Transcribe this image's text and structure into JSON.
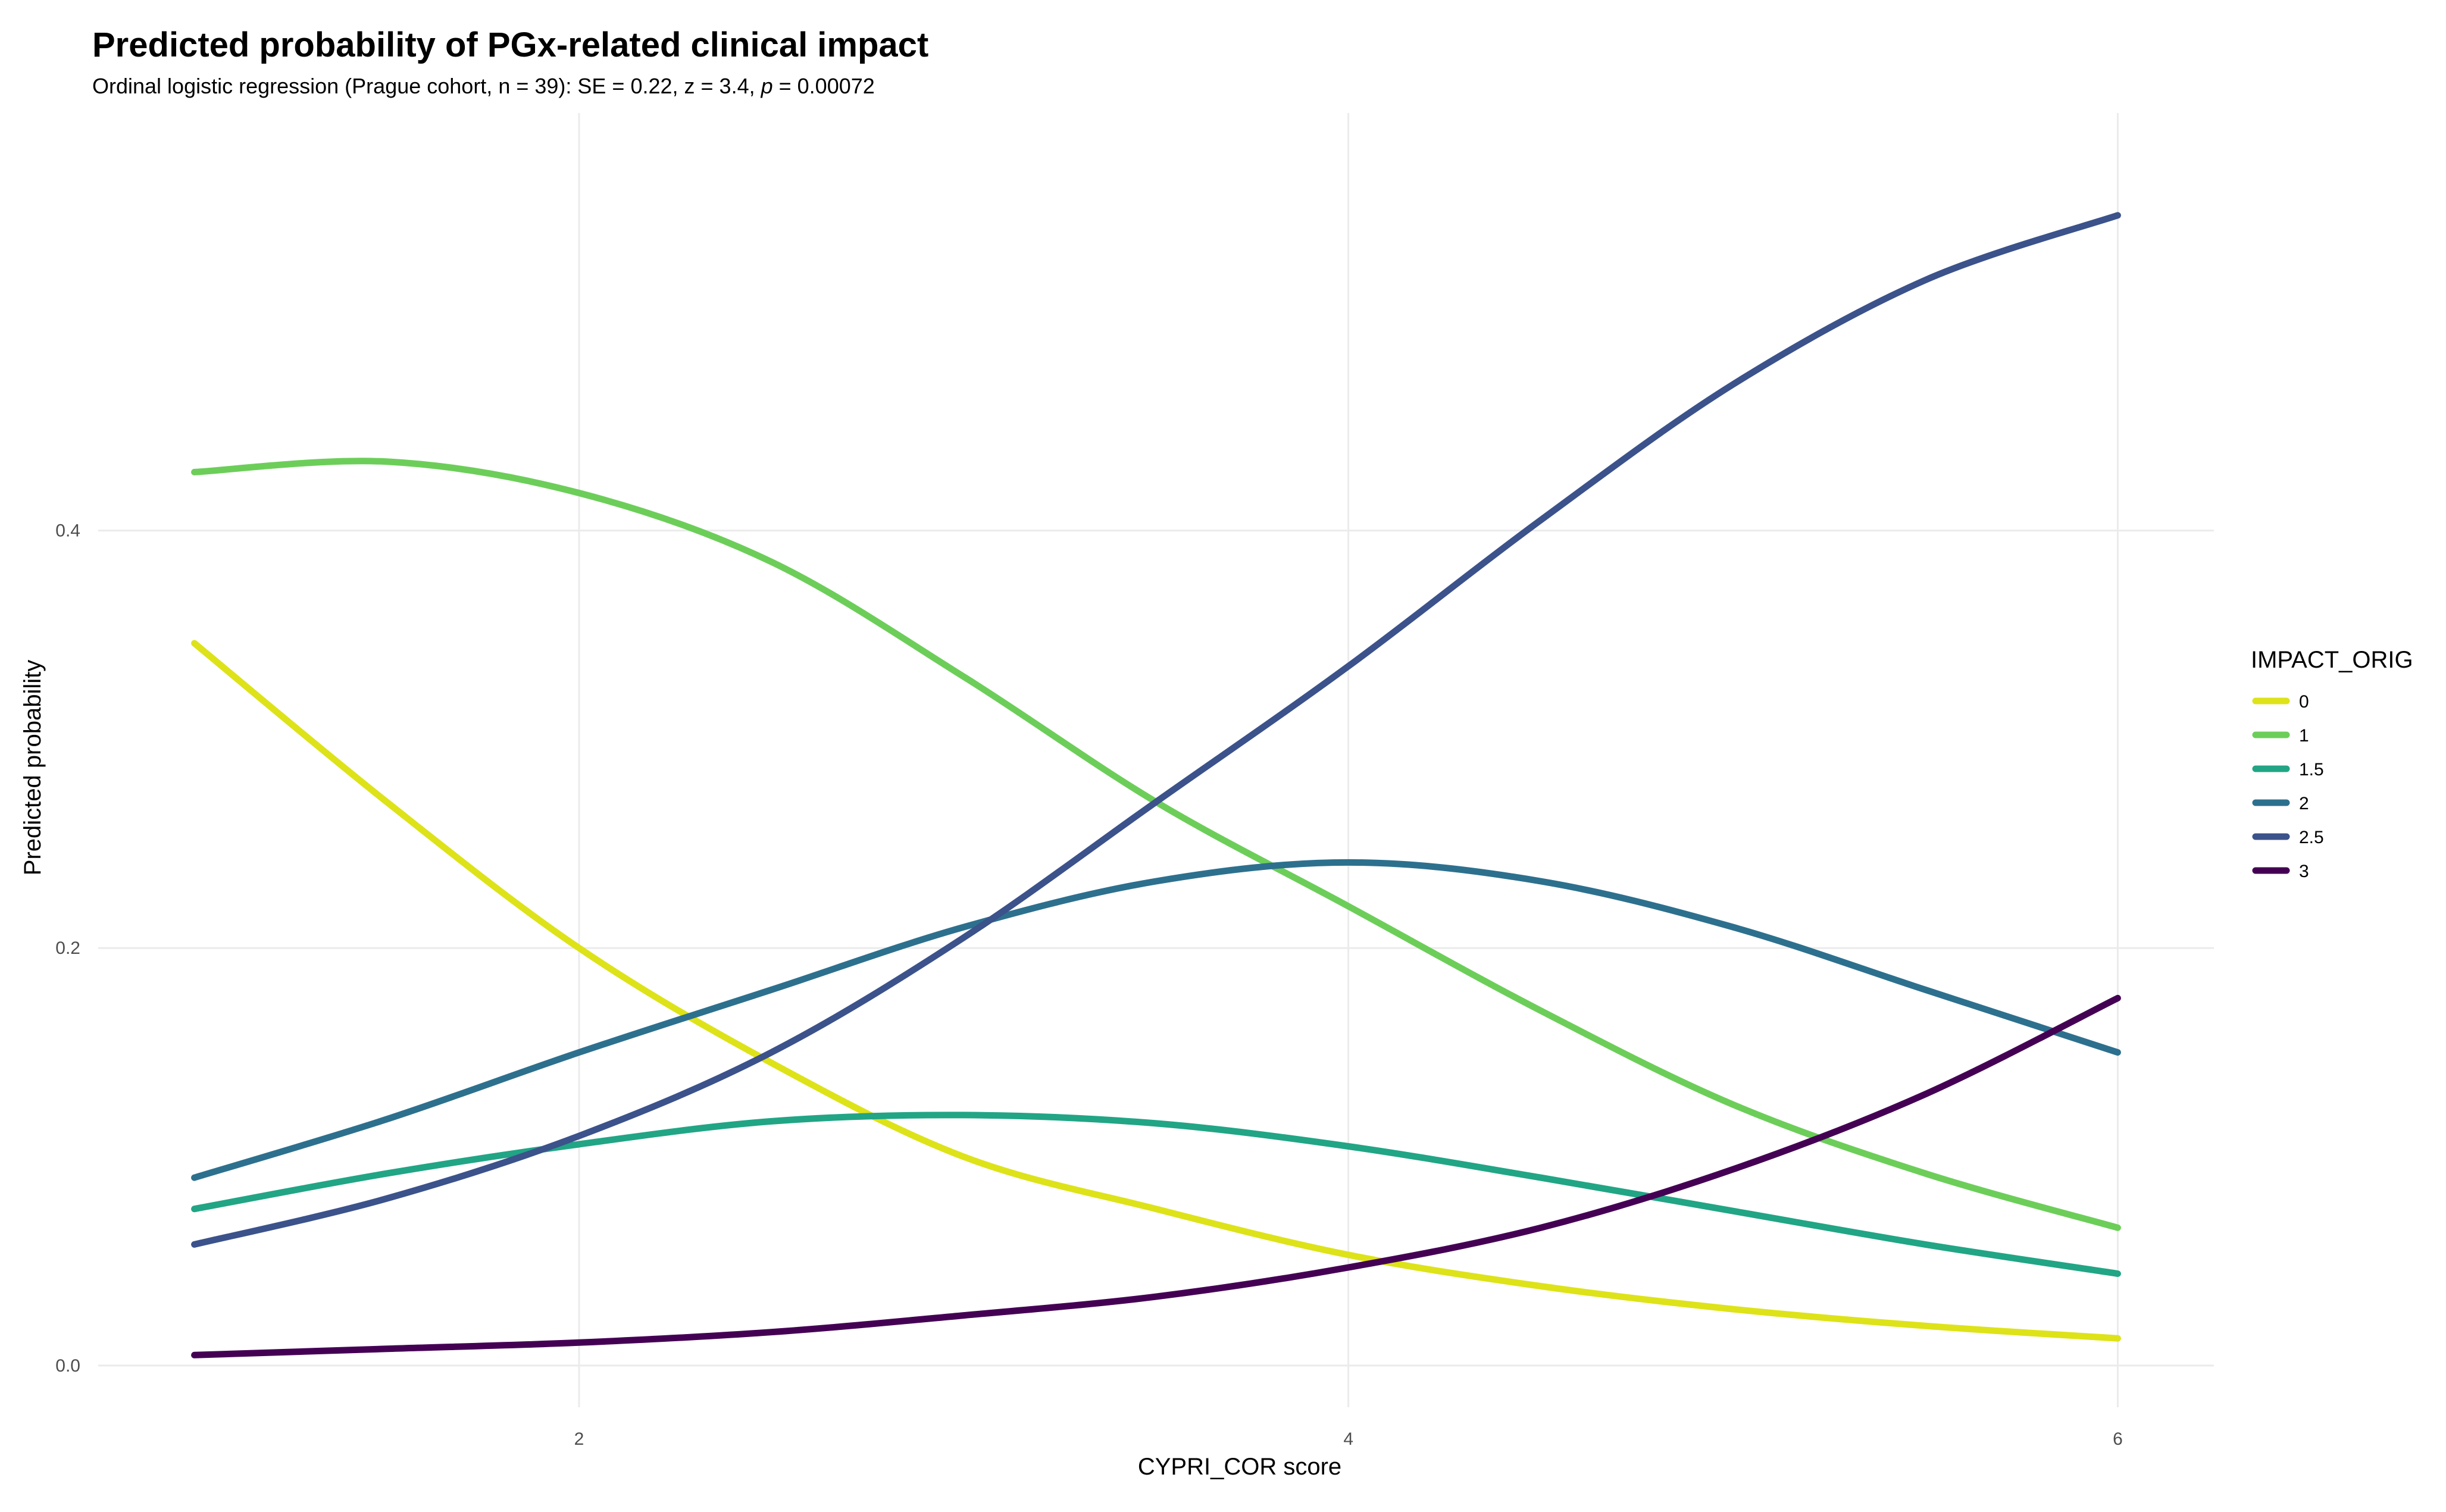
{
  "chart_data": {
    "type": "line",
    "title": "Predicted probability of PGx-related clinical impact",
    "subtitle": "Ordinal logistic regression (Prague cohort, n = 39): SE = 0.22, z = 3.4, ",
    "subtitle_p_symbol": "p",
    "subtitle_p_value": " = 0.00072",
    "xlabel": "CYPRI_COR score",
    "ylabel": "Predicted probability",
    "xlim": [
      0.75,
      6.25
    ],
    "ylim": [
      -0.02,
      0.6
    ],
    "x_ticks": [
      2,
      4,
      6
    ],
    "x_tick_labels": [
      "2",
      "4",
      "6"
    ],
    "y_ticks": [
      0.0,
      0.2,
      0.4
    ],
    "y_tick_labels": [
      "0.0",
      "0.2",
      "0.4"
    ],
    "grid": true,
    "legend": {
      "title": "IMPACT_ORIG",
      "position": "right"
    },
    "series": [
      {
        "name": "0",
        "color": "#DDE318",
        "x": [
          1,
          1.5,
          2,
          2.5,
          3,
          3.5,
          4,
          4.5,
          5,
          5.5,
          6
        ],
        "y": [
          0.346,
          0.27,
          0.2,
          0.145,
          0.1,
          0.075,
          0.053,
          0.038,
          0.027,
          0.019,
          0.013
        ]
      },
      {
        "name": "1",
        "color": "#6CCE59",
        "x": [
          1,
          1.5,
          2,
          2.5,
          3,
          3.5,
          4,
          4.5,
          5,
          5.5,
          6
        ],
        "y": [
          0.428,
          0.433,
          0.418,
          0.385,
          0.33,
          0.27,
          0.22,
          0.17,
          0.125,
          0.092,
          0.066
        ]
      },
      {
        "name": "1.5",
        "color": "#21A585",
        "x": [
          1,
          1.5,
          2,
          2.5,
          3,
          3.5,
          4,
          4.5,
          5,
          5.5,
          6
        ],
        "y": [
          0.075,
          0.092,
          0.106,
          0.117,
          0.12,
          0.116,
          0.105,
          0.09,
          0.074,
          0.058,
          0.044
        ]
      },
      {
        "name": "2",
        "color": "#2D708E",
        "x": [
          1,
          1.5,
          2,
          2.5,
          3,
          3.5,
          4,
          4.5,
          5,
          5.5,
          6
        ],
        "y": [
          0.09,
          0.118,
          0.15,
          0.18,
          0.21,
          0.232,
          0.241,
          0.232,
          0.21,
          0.18,
          0.15
        ]
      },
      {
        "name": "2.5",
        "color": "#3B528B",
        "x": [
          1,
          1.5,
          2,
          2.5,
          3,
          3.5,
          4,
          4.5,
          5,
          5.5,
          6
        ],
        "y": [
          0.058,
          0.08,
          0.11,
          0.15,
          0.205,
          0.27,
          0.335,
          0.405,
          0.47,
          0.52,
          0.551
        ]
      },
      {
        "name": "3",
        "color": "#440154",
        "x": [
          1,
          1.5,
          2,
          2.5,
          3,
          3.5,
          4,
          4.5,
          5,
          5.5,
          6
        ],
        "y": [
          0.005,
          0.008,
          0.011,
          0.016,
          0.024,
          0.033,
          0.047,
          0.066,
          0.094,
          0.13,
          0.176
        ]
      }
    ]
  }
}
